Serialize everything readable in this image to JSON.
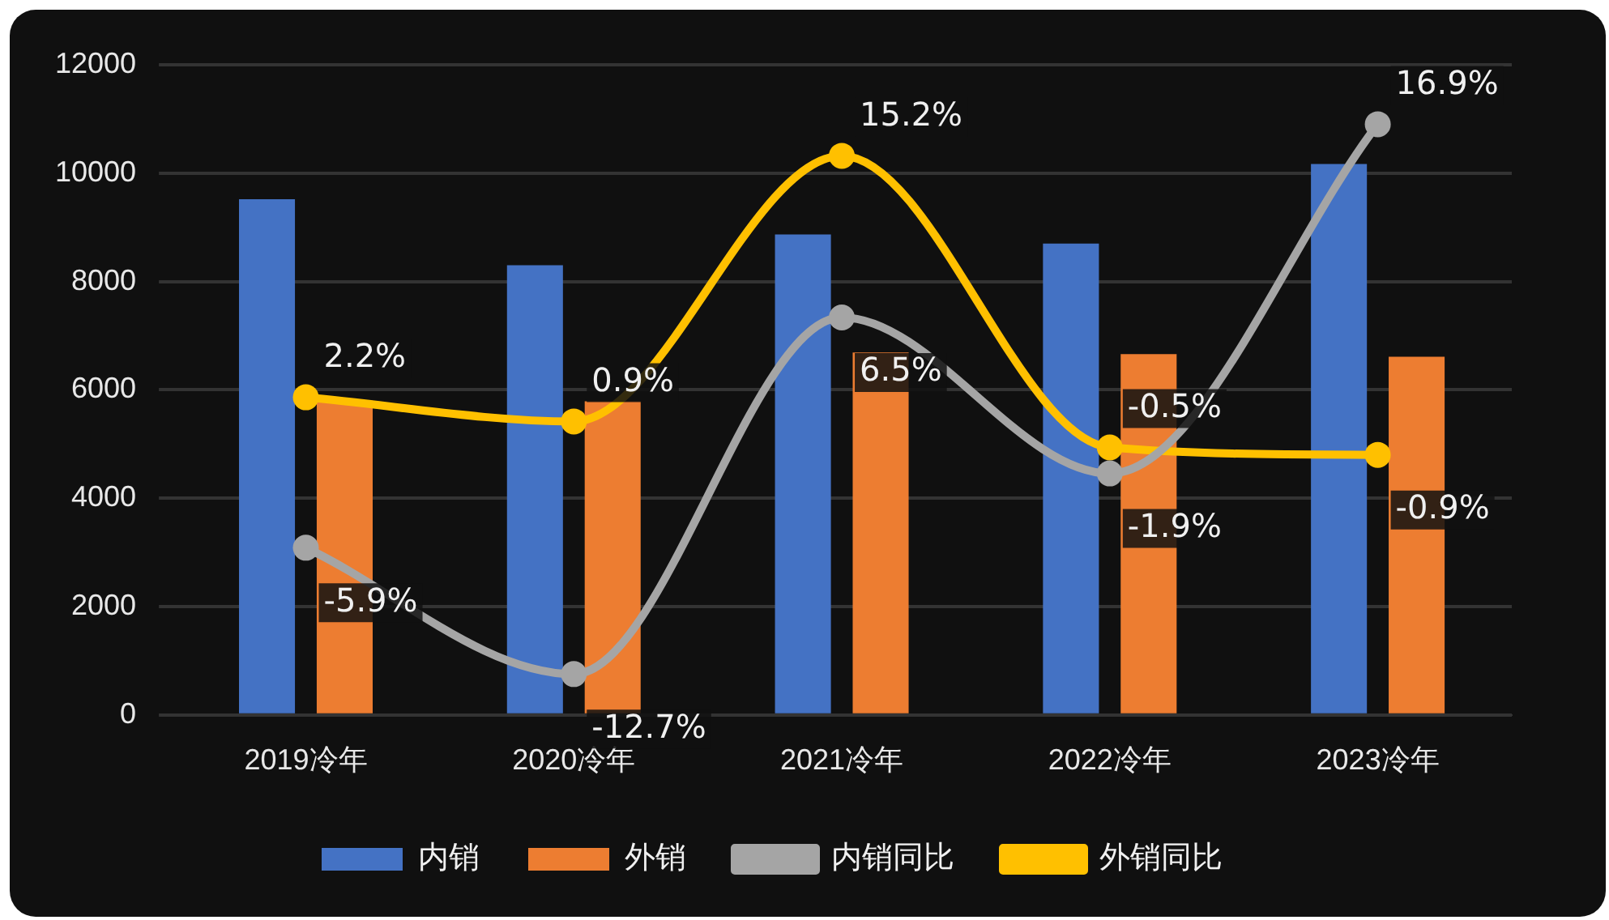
{
  "chart_data": {
    "type": "bar",
    "categories": [
      "2019冷年",
      "2020冷年",
      "2021冷年",
      "2022冷年",
      "2023冷年"
    ],
    "series": [
      {
        "name": "内销",
        "color": "#4472c4",
        "values": [
          9520,
          8300,
          8870,
          8700,
          10170
        ]
      },
      {
        "name": "外销",
        "color": "#ed7d31",
        "values": [
          5800,
          5790,
          6690,
          6660,
          6610
        ]
      },
      {
        "name": "内销同比",
        "type": "line",
        "axis": "y2",
        "color": "#a5a5a5",
        "values": [
          -5.9,
          -12.7,
          6.5,
          -1.9,
          16.9
        ],
        "value_labels": [
          "-5.9%",
          "-12.7%",
          "6.5%",
          "-1.9%",
          "16.9%"
        ]
      },
      {
        "name": "外销同比",
        "type": "line",
        "axis": "y2",
        "color": "#ffc000",
        "values": [
          2.2,
          0.9,
          15.2,
          -0.5,
          -0.9
        ],
        "value_labels": [
          "2.2%",
          "0.9%",
          "15.2%",
          "-0.5%",
          "-0.9%"
        ]
      }
    ],
    "ylim": [
      0,
      12000
    ],
    "yticks": [
      0,
      2000,
      4000,
      6000,
      8000,
      10000,
      12000
    ],
    "y2lim": [
      -14.9,
      20.1
    ],
    "tick_labels": "xy",
    "grid": "y",
    "legend": "bottom",
    "marker": "circle",
    "line_style": "solid"
  }
}
